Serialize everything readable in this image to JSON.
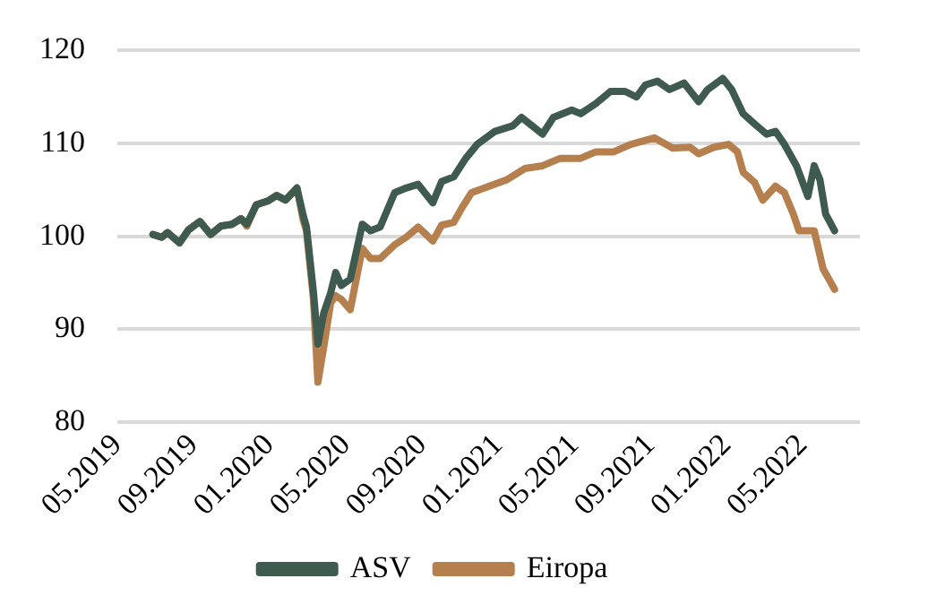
{
  "chart_data": {
    "type": "line",
    "ylim": [
      80,
      120
    ],
    "yticks": [
      80,
      90,
      100,
      110,
      120
    ],
    "xlim": [
      "2019-05",
      "2022-08"
    ],
    "xticks": [
      {
        "value": "2019-05",
        "label": "05.2019"
      },
      {
        "value": "2019-09",
        "label": "09.2019"
      },
      {
        "value": "2020-01",
        "label": "01.2020"
      },
      {
        "value": "2020-05",
        "label": "05.2020"
      },
      {
        "value": "2020-09",
        "label": "09.2020"
      },
      {
        "value": "2021-01",
        "label": "01.2021"
      },
      {
        "value": "2021-05",
        "label": "05.2021"
      },
      {
        "value": "2021-09",
        "label": "09.2021"
      },
      {
        "value": "2022-01",
        "label": "01.2022"
      },
      {
        "value": "2022-05",
        "label": "05.2022"
      }
    ],
    "grid": "y",
    "legend": "bottom",
    "marker": "none",
    "line_style": "solid",
    "series": [
      {
        "name": "ASV",
        "color": "#3f5a4e",
        "x": [
          "2019-06-27",
          "2019-07-11",
          "2019-07-20",
          "2019-08-09",
          "2019-08-23",
          "2019-09-11",
          "2019-09-28",
          "2019-10-14",
          "2019-11-02",
          "2019-11-16",
          "2019-11-25",
          "2019-12-10",
          "2019-12-28",
          "2020-01-12",
          "2020-01-26",
          "2020-02-14",
          "2020-02-24",
          "2020-02-29",
          "2020-03-10",
          "2020-03-17",
          "2020-03-26",
          "2020-04-07",
          "2020-04-15",
          "2020-04-24",
          "2020-05-08",
          "2020-05-27",
          "2020-06-10",
          "2020-06-25",
          "2020-07-18",
          "2020-08-06",
          "2020-08-25",
          "2020-09-18",
          "2020-10-02",
          "2020-10-21",
          "2020-11-10",
          "2020-11-28",
          "2020-12-26",
          "2021-01-24",
          "2021-02-08",
          "2021-03-11",
          "2021-03-28",
          "2021-04-27",
          "2021-05-11",
          "2021-06-05",
          "2021-06-28",
          "2021-07-21",
          "2021-08-09",
          "2021-08-23",
          "2021-09-12",
          "2021-10-01",
          "2021-10-24",
          "2021-11-17",
          "2021-12-01",
          "2021-12-25",
          "2022-01-09",
          "2022-01-27",
          "2022-02-15",
          "2022-03-04",
          "2022-03-18",
          "2022-04-02",
          "2022-04-21",
          "2022-05-09",
          "2022-05-19",
          "2022-05-28",
          "2022-06-07",
          "2022-06-21"
        ],
        "values": [
          100.2,
          99.9,
          100.4,
          99.3,
          100.7,
          101.6,
          100.2,
          101.1,
          101.3,
          101.9,
          101.3,
          103.4,
          103.8,
          104.4,
          103.9,
          105.2,
          102.2,
          101,
          94,
          88.4,
          91.7,
          93.9,
          96.1,
          94.7,
          95.4,
          101.3,
          100.6,
          101,
          104.7,
          105.2,
          105.6,
          103.6,
          105.9,
          106.4,
          108.4,
          109.9,
          111.3,
          111.9,
          112.8,
          111,
          112.8,
          113.6,
          113.2,
          114.3,
          115.6,
          115.6,
          115,
          116.3,
          116.7,
          115.8,
          116.5,
          114.5,
          115.8,
          117,
          115.8,
          113.2,
          112.1,
          111,
          111.3,
          109.9,
          107.6,
          104.3,
          107.6,
          106.1,
          102.4,
          100.6
        ]
      },
      {
        "name": "Eiropa",
        "color": "#b57f4e",
        "x": [
          "2019-06-27",
          "2019-07-11",
          "2019-07-20",
          "2019-08-09",
          "2019-08-23",
          "2019-09-11",
          "2019-09-28",
          "2019-10-14",
          "2019-11-02",
          "2019-11-16",
          "2019-11-25",
          "2019-12-10",
          "2019-12-28",
          "2020-01-12",
          "2020-01-26",
          "2020-02-14",
          "2020-02-24",
          "2020-02-29",
          "2020-03-10",
          "2020-03-17",
          "2020-03-26",
          "2020-04-07",
          "2020-04-15",
          "2020-04-24",
          "2020-05-08",
          "2020-05-27",
          "2020-06-10",
          "2020-06-25",
          "2020-07-18",
          "2020-08-06",
          "2020-08-25",
          "2020-09-18",
          "2020-10-02",
          "2020-10-21",
          "2020-11-05",
          "2020-11-19",
          "2020-12-17",
          "2021-01-15",
          "2021-02-13",
          "2021-03-11",
          "2021-04-09",
          "2021-05-11",
          "2021-06-05",
          "2021-07-03",
          "2021-07-30",
          "2021-09-07",
          "2021-10-06",
          "2021-11-03",
          "2021-11-17",
          "2021-12-11",
          "2022-01-04",
          "2022-01-18",
          "2022-01-27",
          "2022-02-15",
          "2022-02-28",
          "2022-03-18",
          "2022-04-02",
          "2022-04-16",
          "2022-04-25",
          "2022-05-19",
          "2022-06-03",
          "2022-06-12",
          "2022-06-21"
        ],
        "values": [
          100.2,
          99.9,
          100.4,
          99.3,
          100.7,
          101.6,
          100.2,
          101.1,
          101.3,
          101.9,
          101.1,
          103.4,
          103.8,
          104.4,
          103.9,
          105.2,
          101.7,
          100.6,
          93.2,
          84.3,
          88,
          92.8,
          93.6,
          93.2,
          92.1,
          98.7,
          97.6,
          97.6,
          99.1,
          99.9,
          101,
          99.5,
          101.2,
          101.5,
          103.2,
          104.7,
          105.4,
          106.1,
          107.3,
          107.6,
          108.4,
          108.4,
          109.1,
          109.1,
          109.9,
          110.6,
          109.5,
          109.6,
          108.9,
          109.6,
          109.9,
          109.1,
          106.9,
          105.8,
          103.9,
          105.4,
          104.7,
          102.4,
          100.6,
          100.6,
          96.5,
          95.4,
          94.3
        ]
      }
    ]
  }
}
